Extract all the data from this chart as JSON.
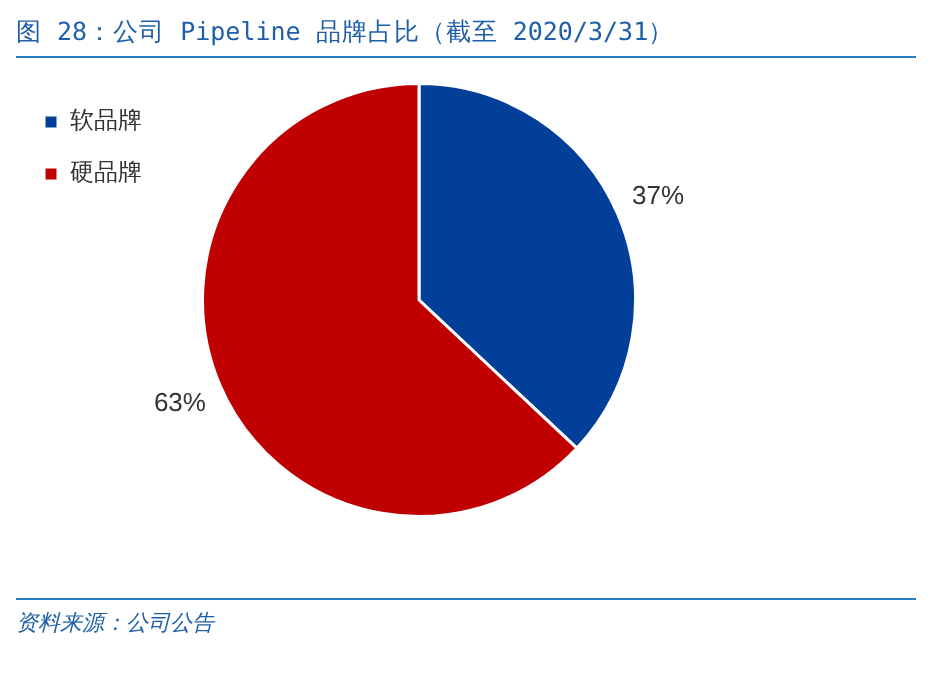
{
  "chart_data": {
    "type": "pie",
    "title": "图 28：公司 Pipeline 品牌占比（截至 2020/3/31）",
    "categories": [
      "软品牌",
      "硬品牌"
    ],
    "values": [
      37,
      63
    ],
    "colors": [
      "#023f98",
      "#c00000"
    ],
    "value_labels": [
      "37%",
      "63%"
    ],
    "legend": "top left",
    "annotations": [
      "资料来源：公司公告"
    ]
  }
}
